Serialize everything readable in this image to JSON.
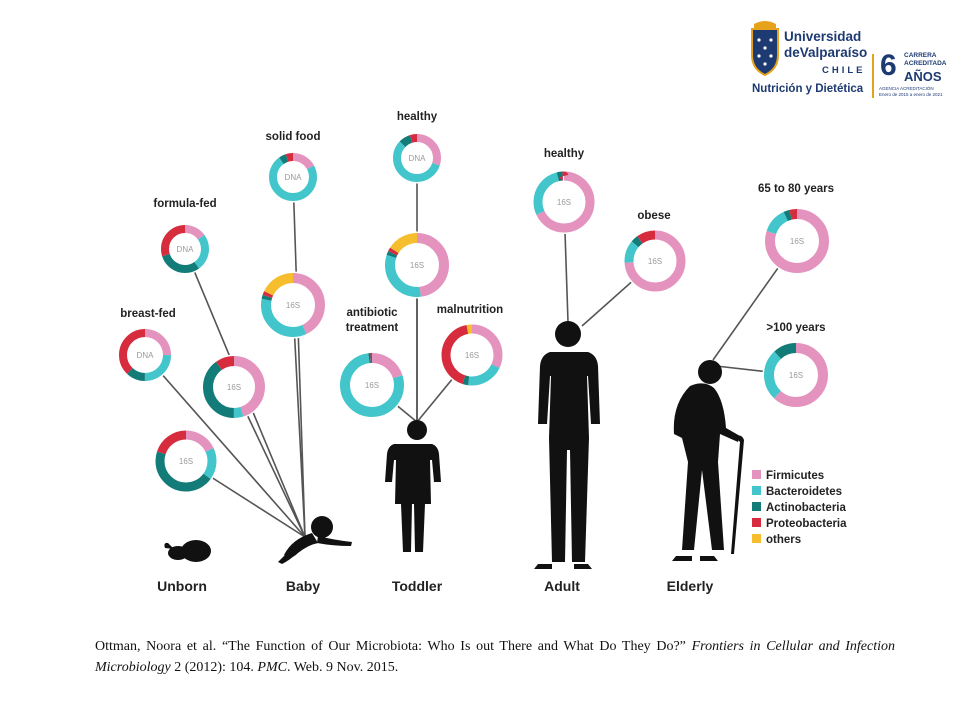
{
  "logo": {
    "university_line1": "Universidad",
    "university_line2": "deValparaíso",
    "country": "CHILE",
    "program": "Nutrición y Dietética",
    "accreditation_number": "6",
    "accreditation_line1": "CARRERA",
    "accreditation_line2": "ACREDITADA",
    "accreditation_years": "AÑOS",
    "agency_line1": "AGENCIA ACREDITACIÓN",
    "agency_line2": "Enero de 2015 a enero de 2021"
  },
  "stages": [
    "Unborn",
    "Baby",
    "Toddler",
    "Adult",
    "Elderly"
  ],
  "legend": [
    {
      "label": "Firmicutes",
      "color": "#e493bf"
    },
    {
      "label": "Bacteroidetes",
      "color": "#42c5cb"
    },
    {
      "label": "Actinobacteria",
      "color": "#137b78"
    },
    {
      "label": "Proteobacteria",
      "color": "#d62c3d"
    },
    {
      "label": "others",
      "color": "#f6bd2c"
    }
  ],
  "colors": {
    "Firmicutes": "#e493bf",
    "Bacteroidetes": "#42c5cb",
    "Actinobacteria": "#137b78",
    "Proteobacteria": "#d62c3d",
    "others": "#f6bd2c",
    "silhouette": "#111111",
    "connector": "#555555"
  },
  "donuts": [
    {
      "id": "breast-fed",
      "label": "breast-fed",
      "center_label": "DNA",
      "values": {
        "Firmicutes": 0.25,
        "Bacteroidetes": 0.25,
        "Actinobacteria": 0.12,
        "Proteobacteria": 0.38,
        "others": 0
      }
    },
    {
      "id": "breast-fed-16s",
      "label": "",
      "center_label": "16S",
      "values": {
        "Firmicutes": 0.18,
        "Bacteroidetes": 0.17,
        "Actinobacteria": 0.45,
        "Proteobacteria": 0.2,
        "others": 0
      }
    },
    {
      "id": "formula-fed",
      "label": "formula-fed",
      "center_label": "DNA",
      "values": {
        "Firmicutes": 0.15,
        "Bacteroidetes": 0.25,
        "Actinobacteria": 0.3,
        "Proteobacteria": 0.3,
        "others": 0
      }
    },
    {
      "id": "formula-fed-16s",
      "label": "",
      "center_label": "16S",
      "values": {
        "Firmicutes": 0.45,
        "Bacteroidetes": 0.05,
        "Actinobacteria": 0.4,
        "Proteobacteria": 0.1,
        "others": 0
      }
    },
    {
      "id": "solid-food",
      "label": "solid food",
      "center_label": "DNA",
      "values": {
        "Firmicutes": 0.17,
        "Bacteroidetes": 0.73,
        "Actinobacteria": 0.05,
        "Proteobacteria": 0.05,
        "others": 0
      }
    },
    {
      "id": "solid-food-16s",
      "label": "",
      "center_label": "16S",
      "values": {
        "Firmicutes": 0.43,
        "Bacteroidetes": 0.35,
        "Actinobacteria": 0.02,
        "Proteobacteria": 0.02,
        "others": 0.18
      }
    },
    {
      "id": "antibiotic",
      "label": "antibiotic treatment",
      "label_lines": [
        "antibiotic",
        "treatment"
      ],
      "center_label": "16S",
      "values": {
        "Firmicutes": 0.2,
        "Bacteroidetes": 0.78,
        "Actinobacteria": 0.01,
        "Proteobacteria": 0.01,
        "others": 0
      }
    },
    {
      "id": "toddler-healthy",
      "label": "healthy",
      "center_label": "DNA",
      "values": {
        "Firmicutes": 0.3,
        "Bacteroidetes": 0.57,
        "Actinobacteria": 0.08,
        "Proteobacteria": 0.05,
        "others": 0
      }
    },
    {
      "id": "toddler-healthy-16s",
      "label": "",
      "center_label": "16S",
      "values": {
        "Firmicutes": 0.48,
        "Bacteroidetes": 0.32,
        "Actinobacteria": 0.02,
        "Proteobacteria": 0.02,
        "others": 0.16
      }
    },
    {
      "id": "malnutrition",
      "label": "malnutrition",
      "center_label": "16S",
      "values": {
        "Firmicutes": 0.32,
        "Bacteroidetes": 0.2,
        "Actinobacteria": 0.03,
        "Proteobacteria": 0.42,
        "others": 0.03
      }
    },
    {
      "id": "adult-healthy",
      "label": "healthy",
      "center_label": "16S",
      "values": {
        "Firmicutes": 0.68,
        "Bacteroidetes": 0.28,
        "Actinobacteria": 0.03,
        "Proteobacteria": 0.01,
        "others": 0
      }
    },
    {
      "id": "obese",
      "label": "obese",
      "center_label": "16S",
      "values": {
        "Firmicutes": 0.74,
        "Bacteroidetes": 0.12,
        "Actinobacteria": 0.04,
        "Proteobacteria": 0.1,
        "others": 0
      }
    },
    {
      "id": "65-80",
      "label": "65 to 80 years",
      "center_label": "16S",
      "values": {
        "Firmicutes": 0.8,
        "Bacteroidetes": 0.13,
        "Actinobacteria": 0.03,
        "Proteobacteria": 0.04,
        "others": 0
      }
    },
    {
      "id": "100-years",
      "label": ">100 years",
      "center_label": "16S",
      "values": {
        "Firmicutes": 0.62,
        "Bacteroidetes": 0.26,
        "Actinobacteria": 0.12,
        "Proteobacteria": 0,
        "others": 0
      }
    }
  ],
  "citation": {
    "authors": "Ottman, Noora et al.",
    "title": "“The Function of Our Microbiota: Who Is out There and What Do They Do?”",
    "journal": "Frontiers in Cellular and Infection Microbiology",
    "volume": "2 (2012): 104.",
    "database": "PMC",
    "access": ". Web. 9 Nov. 2015."
  }
}
